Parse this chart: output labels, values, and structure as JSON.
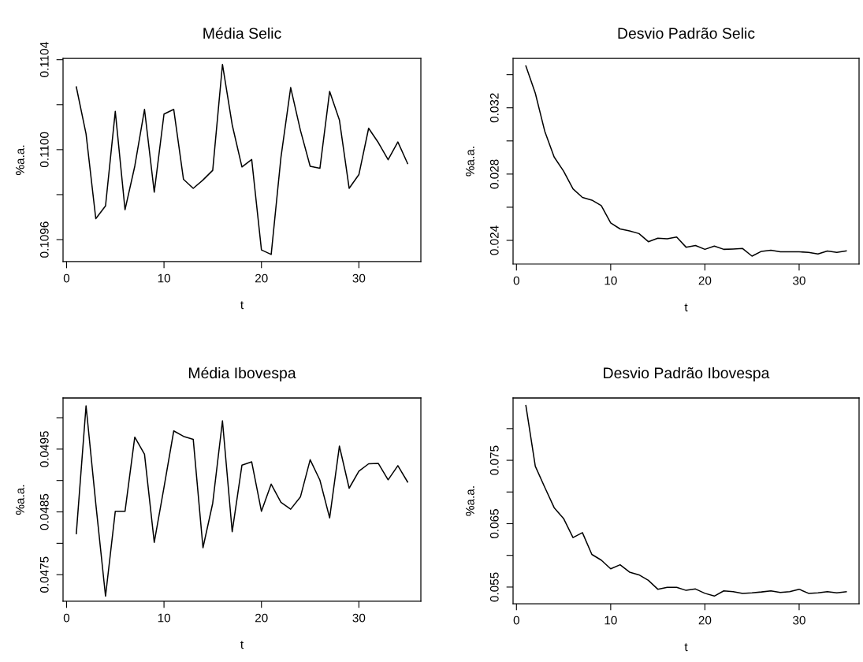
{
  "chart_data": [
    {
      "type": "line",
      "title": "Média Selic",
      "xlabel": "t",
      "ylabel": "%a.a.",
      "x": [
        1,
        2,
        3,
        4,
        5,
        6,
        7,
        8,
        9,
        10,
        11,
        12,
        13,
        14,
        15,
        16,
        17,
        18,
        19,
        20,
        21,
        22,
        23,
        24,
        25,
        26,
        27,
        28,
        29,
        30,
        31,
        32,
        33,
        34,
        35
      ],
      "series": [
        {
          "color": "#000000",
          "values": [
            0.110279,
            0.11007,
            0.109693,
            0.10975,
            0.11017,
            0.109733,
            0.109926,
            0.110179,
            0.109811,
            0.110158,
            0.110179,
            0.109868,
            0.109828,
            0.109865,
            0.109908,
            0.110379,
            0.11011,
            0.109923,
            0.109956,
            0.109554,
            0.109534,
            0.109965,
            0.110276,
            0.110086,
            0.109926,
            0.109917,
            0.110259,
            0.110132,
            0.109828,
            0.109889,
            0.110095,
            0.110031,
            0.109955,
            0.110034,
            0.109938
          ]
        }
      ],
      "xlim": [
        -0.36,
        36.36
      ],
      "ylim": [
        0.109502,
        0.110406
      ],
      "xticks": [
        0,
        10,
        20,
        30
      ],
      "yticks": [
        0.1096,
        {
          "value": 0.1098,
          "label": null
        },
        {
          "value": 0.11,
          "label": "0.1100"
        },
        {
          "value": 0.1102,
          "label": null
        },
        0.1104
      ],
      "grid": false
    },
    {
      "type": "line",
      "title": "Desvio Padrão Selic",
      "xlabel": "t",
      "ylabel": "%a.a.",
      "x": [
        1,
        2,
        3,
        4,
        5,
        6,
        7,
        8,
        9,
        10,
        11,
        12,
        13,
        14,
        15,
        16,
        17,
        18,
        19,
        20,
        21,
        22,
        23,
        24,
        25,
        26,
        27,
        28,
        29,
        30,
        31,
        32,
        33,
        34,
        35
      ],
      "series": [
        {
          "color": "#000000",
          "values": [
            0.03452,
            0.03288,
            0.03059,
            0.02903,
            0.02818,
            0.02711,
            0.02659,
            0.02643,
            0.0261,
            0.02505,
            0.02469,
            0.02457,
            0.02441,
            0.02392,
            0.02413,
            0.0241,
            0.0242,
            0.02359,
            0.02369,
            0.02346,
            0.02366,
            0.02346,
            0.02348,
            0.02351,
            0.02305,
            0.02334,
            0.02341,
            0.02331,
            0.02331,
            0.02331,
            0.02328,
            0.02318,
            0.02336,
            0.02328,
            0.02336
          ]
        }
      ],
      "xlim": [
        -0.36,
        36.36
      ],
      "ylim": [
        0.022574,
        0.034983
      ],
      "xticks": [
        0,
        10,
        20,
        30
      ],
      "yticks": [
        0.024,
        {
          "value": 0.026,
          "label": null
        },
        0.028,
        {
          "value": 0.03,
          "label": null
        },
        0.032,
        {
          "value": 0.034,
          "label": null
        }
      ],
      "grid": false
    },
    {
      "type": "line",
      "title": "Média Ibovespa",
      "xlabel": "t",
      "ylabel": "%a.a.",
      "x": [
        1,
        2,
        3,
        4,
        5,
        6,
        7,
        8,
        9,
        10,
        11,
        12,
        13,
        14,
        15,
        16,
        17,
        18,
        19,
        20,
        21,
        22,
        23,
        24,
        25,
        26,
        27,
        28,
        29,
        30,
        31,
        32,
        33,
        34,
        35
      ],
      "series": [
        {
          "color": "#000000",
          "values": [
            0.048154,
            0.050188,
            0.04863,
            0.047158,
            0.048509,
            0.048509,
            0.04969,
            0.049418,
            0.048015,
            0.04889,
            0.04979,
            0.049703,
            0.049656,
            0.047929,
            0.048639,
            0.04995,
            0.048184,
            0.049245,
            0.049297,
            0.048509,
            0.048942,
            0.048652,
            0.048543,
            0.048738,
            0.049331,
            0.049006,
            0.048405,
            0.049548,
            0.048877,
            0.049149,
            0.049266,
            0.049271,
            0.049011,
            0.049236,
            0.048976
          ]
        }
      ],
      "xlim": [
        -0.36,
        36.36
      ],
      "ylim": [
        0.047076,
        0.050314
      ],
      "xticks": [
        0,
        10,
        20,
        30
      ],
      "yticks": [
        0.0475,
        {
          "value": 0.048,
          "label": null
        },
        0.0485,
        {
          "value": 0.049,
          "label": null
        },
        0.0495,
        {
          "value": 0.05,
          "label": null
        }
      ],
      "grid": false
    },
    {
      "type": "line",
      "title": "Desvio Padrão Ibovespa",
      "xlabel": "t",
      "ylabel": "%a.a.",
      "x": [
        1,
        2,
        3,
        4,
        5,
        6,
        7,
        8,
        9,
        10,
        11,
        12,
        13,
        14,
        15,
        16,
        17,
        18,
        19,
        20,
        21,
        22,
        23,
        24,
        25,
        26,
        27,
        28,
        29,
        30,
        31,
        32,
        33,
        34,
        35
      ],
      "series": [
        {
          "color": "#000000",
          "values": [
            0.08363,
            0.07406,
            0.07075,
            0.06753,
            0.06582,
            0.06281,
            0.06358,
            0.06015,
            0.05925,
            0.05788,
            0.05852,
            0.05736,
            0.05693,
            0.05607,
            0.05466,
            0.05496,
            0.05496,
            0.05448,
            0.0547,
            0.05401,
            0.05358,
            0.0544,
            0.05427,
            0.05401,
            0.0541,
            0.05423,
            0.0544,
            0.05414,
            0.05427,
            0.05466,
            0.05401,
            0.0541,
            0.05427,
            0.0541,
            0.05427
          ]
        }
      ],
      "xlim": [
        -0.36,
        36.36
      ],
      "ylim": [
        0.05238,
        0.08483
      ],
      "xticks": [
        0,
        10,
        20,
        30
      ],
      "yticks": [
        0.055,
        {
          "value": 0.06,
          "label": null
        },
        0.065,
        {
          "value": 0.07,
          "label": null
        },
        0.075,
        {
          "value": 0.08,
          "label": null
        }
      ],
      "grid": false
    }
  ]
}
